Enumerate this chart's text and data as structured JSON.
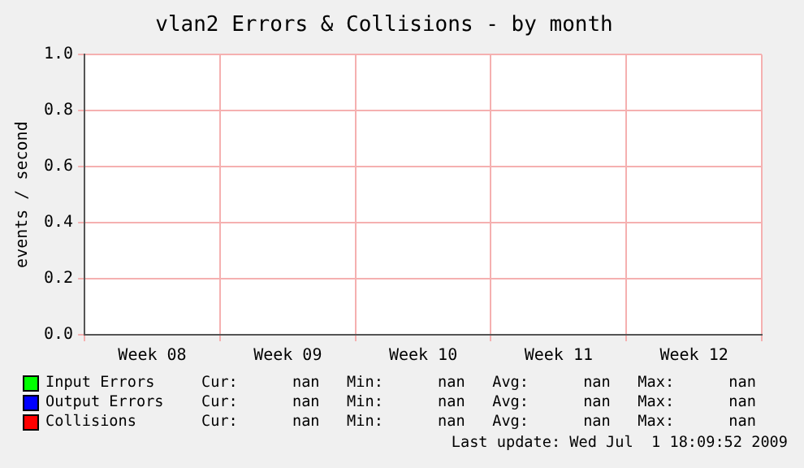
{
  "chart_data": {
    "type": "line",
    "title": "vlan2 Errors & Collisions - by month",
    "ylabel": "events / second",
    "categories": [
      "Week 08",
      "Week 09",
      "Week 10",
      "Week 11",
      "Week 12"
    ],
    "series": [
      {
        "name": "Input Errors",
        "color": "#00ff00",
        "values": [
          null,
          null,
          null,
          null,
          null
        ]
      },
      {
        "name": "Output Errors",
        "color": "#0000ff",
        "values": [
          null,
          null,
          null,
          null,
          null
        ]
      },
      {
        "name": "Collisions",
        "color": "#ff0000",
        "values": [
          null,
          null,
          null,
          null,
          null
        ]
      }
    ],
    "ylim": [
      0,
      1
    ],
    "yticks": [
      {
        "value": 0,
        "label": "0.0"
      },
      {
        "value": 0.2,
        "label": "0.2"
      },
      {
        "value": 0.4,
        "label": "0.4"
      },
      {
        "value": 0.6,
        "label": "0.6"
      },
      {
        "value": 0.8,
        "label": "0.8"
      },
      {
        "value": 1,
        "label": "1.0"
      }
    ],
    "grid": true,
    "legend": "bottom",
    "annotations": [
      "Cur:      nan   Min:      nan   Avg:      nan   Max:      nan",
      "Cur:      nan   Min:      nan   Avg:      nan   Max:      nan",
      "Cur:      nan   Min:      nan   Avg:      nan   Max:      nan",
      "Last update: Wed Jul  1 18:09:52 2009"
    ]
  }
}
